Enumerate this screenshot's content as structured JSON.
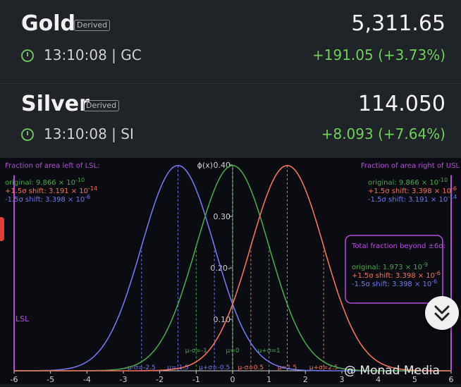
{
  "tickers": [
    {
      "name": "Gold",
      "badge": "Derived",
      "price": "5,311.65",
      "time": "13:10:08 | GC",
      "change": "+191.05 (+3.73%)"
    },
    {
      "name": "Silver",
      "badge": "Derived",
      "price": "114.050",
      "time": "13:10:08 | SI",
      "change": "+8.093 (+7.64%)"
    }
  ],
  "chart_data": {
    "type": "line",
    "ylabel": "ϕ(x)",
    "xlim": [
      -6,
      6
    ],
    "ylim": [
      0,
      0.4
    ],
    "x_ticks": [
      "-6",
      "-5",
      "-4",
      "-3",
      "-2",
      "-1",
      "0",
      "1",
      "2",
      "3",
      "4",
      "5",
      "6"
    ],
    "y_ticks": [
      "0.10",
      "0.20-",
      "0.30",
      "0.40"
    ],
    "series": [
      {
        "name": "-1.5σ shift",
        "mean": -1.5,
        "sd": 1,
        "color": "#6f78e6"
      },
      {
        "name": "original",
        "mean": 0,
        "sd": 1,
        "color": "#4aa24a"
      },
      {
        "name": "+1.5σ shift",
        "mean": 1.5,
        "sd": 1,
        "color": "#f0735c"
      }
    ],
    "limits": [
      {
        "label": "LSL",
        "x": -6
      },
      {
        "label": "",
        "x": 6
      }
    ],
    "markers": [
      {
        "label": "μ-σ=-2.5",
        "x": -2.5,
        "color": "#6f78e6"
      },
      {
        "label": "μ=-1.5",
        "x": -1.5,
        "color": "#6f78e6"
      },
      {
        "label": "μ+σ=-0.5",
        "x": -0.5,
        "color": "#6f78e6"
      },
      {
        "label": "μ-σ=-1",
        "x": -1,
        "color": "#4aa24a"
      },
      {
        "label": "μ=0",
        "x": 0,
        "color": "#4aa24a"
      },
      {
        "label": "μ+σ=1",
        "x": 1,
        "color": "#4aa24a"
      },
      {
        "label": "μ-σ=0.5",
        "x": 0.5,
        "color": "#f0735c"
      },
      {
        "label": "μ=1.5",
        "x": 1.5,
        "color": "#f0735c"
      },
      {
        "label": "μ+σ=2.5",
        "x": 2.5,
        "color": "#f0735c"
      }
    ],
    "annotations": {
      "left_title": "Fraction of area left of LSL:",
      "left_lines": [
        {
          "label": "original:",
          "value": "9.866 × 10",
          "exp": "-10",
          "color": "#4aa24a"
        },
        {
          "label": "+1.5σ shift:",
          "value": "3.191 × 10",
          "exp": "-14",
          "color": "#f0735c"
        },
        {
          "label": "-1.5σ shift:",
          "value": "3.398 × 10",
          "exp": "-6",
          "color": "#6f78e6"
        }
      ],
      "right_title": "Fraction of area right of USL",
      "right_lines": [
        {
          "label": "original:",
          "value": "9.866 × 10",
          "exp": "-10",
          "color": "#4aa24a"
        },
        {
          "label": "+1.5σ shift:",
          "value": "3.398 × 10",
          "exp": "-6",
          "color": "#f0735c"
        },
        {
          "label": "-1.5σ shift:",
          "value": "3.191 × 10",
          "exp": "-14",
          "color": "#6f78e6"
        }
      ],
      "box_title": "Total fraction beyond ±6σ:",
      "box_lines": [
        {
          "label": "original:",
          "value": "1.973 × 10",
          "exp": "-9",
          "color": "#4aa24a"
        },
        {
          "label": "+1.5σ shift:",
          "value": "3.398 × 10",
          "exp": "-6",
          "color": "#f0735c"
        },
        {
          "label": "-1.5σ shift:",
          "value": "3.398 × 10",
          "exp": "-6",
          "color": "#6f78e6"
        }
      ]
    }
  },
  "watermark": "@ Monad Media",
  "fab_icon": "double-chevron-down-icon",
  "colors": {
    "up": "#6fcf5a",
    "accent_box": "#b14fd6"
  }
}
